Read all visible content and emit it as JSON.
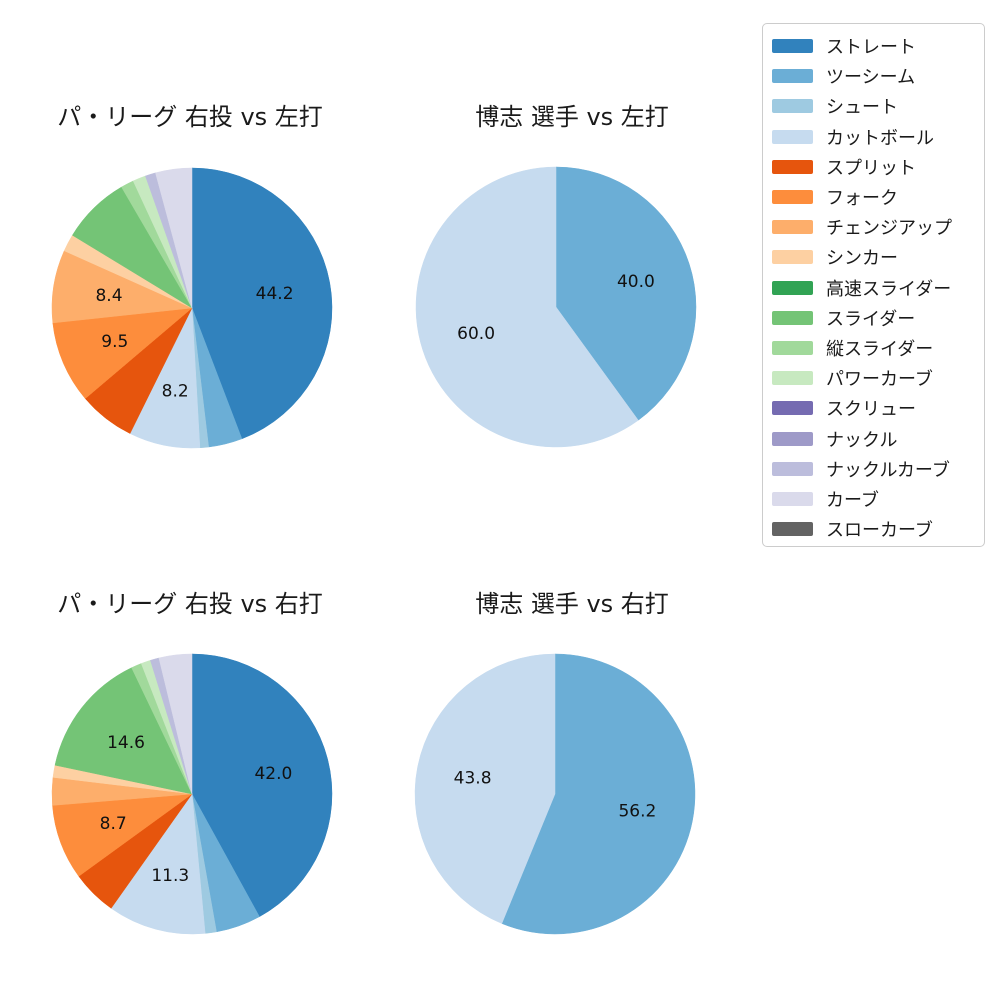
{
  "figure": {
    "background_color": "#ffffff",
    "text_color": "#1a1a1a"
  },
  "palette": {
    "ストレート": "#3182bd",
    "ツーシーム": "#6baed6",
    "シュート": "#9ecae1",
    "カットボール": "#c6dbef",
    "スプリット": "#e6550d",
    "フォーク": "#fd8d3c",
    "チェンジアップ": "#fdae6b",
    "シンカー": "#fdd0a2",
    "高速スライダー": "#31a354",
    "スライダー": "#74c476",
    "縦スライダー": "#a1d99b",
    "パワーカーブ": "#c7e9c0",
    "スクリュー": "#756bb1",
    "ナックル": "#9e9ac8",
    "ナックルカーブ": "#bcbddc",
    "カーブ": "#dadaeb",
    "スローカーブ": "#636363"
  },
  "legend": {
    "position": "upper right",
    "items": [
      "ストレート",
      "ツーシーム",
      "シュート",
      "カットボール",
      "スプリット",
      "フォーク",
      "チェンジアップ",
      "シンカー",
      "高速スライダー",
      "スライダー",
      "縦スライダー",
      "パワーカーブ",
      "スクリュー",
      "ナックル",
      "ナックルカーブ",
      "カーブ",
      "スローカーブ"
    ]
  },
  "chart_data": [
    {
      "type": "pie",
      "title": "パ・リーグ 右投 vs 左打",
      "unit": "percent",
      "start_angle": "top",
      "direction": "clockwise",
      "pct_label_distance": 0.6,
      "slices": [
        {
          "label": "ストレート",
          "value": 44.2,
          "display": "44.2"
        },
        {
          "label": "ツーシーム",
          "value": 3.9,
          "display": ""
        },
        {
          "label": "シュート",
          "value": 1.0,
          "display": ""
        },
        {
          "label": "カットボール",
          "value": 8.2,
          "display": "8.2"
        },
        {
          "label": "スプリット",
          "value": 6.5,
          "display": ""
        },
        {
          "label": "フォーク",
          "value": 9.5,
          "display": "9.5"
        },
        {
          "label": "チェンジアップ",
          "value": 8.4,
          "display": "8.4"
        },
        {
          "label": "シンカー",
          "value": 2.0,
          "display": ""
        },
        {
          "label": "スライダー",
          "value": 7.9,
          "display": ""
        },
        {
          "label": "縦スライダー",
          "value": 1.5,
          "display": ""
        },
        {
          "label": "パワーカーブ",
          "value": 1.5,
          "display": ""
        },
        {
          "label": "ナックルカーブ",
          "value": 1.2,
          "display": ""
        },
        {
          "label": "カーブ",
          "value": 4.2,
          "display": ""
        }
      ]
    },
    {
      "type": "pie",
      "title": "博志 選手 vs 左打",
      "unit": "percent",
      "start_angle": "top",
      "direction": "clockwise",
      "pct_label_distance": 0.6,
      "slices": [
        {
          "label": "ツーシーム",
          "value": 40.0,
          "display": "40.0"
        },
        {
          "label": "カットボール",
          "value": 60.0,
          "display": "60.0"
        }
      ]
    },
    {
      "type": "pie",
      "title": "パ・リーグ 右投 vs 右打",
      "unit": "percent",
      "start_angle": "top",
      "direction": "clockwise",
      "pct_label_distance": 0.6,
      "slices": [
        {
          "label": "ストレート",
          "value": 42.0,
          "display": "42.0"
        },
        {
          "label": "ツーシーム",
          "value": 5.2,
          "display": ""
        },
        {
          "label": "シュート",
          "value": 1.3,
          "display": ""
        },
        {
          "label": "カットボール",
          "value": 11.3,
          "display": "11.3"
        },
        {
          "label": "スプリット",
          "value": 5.2,
          "display": ""
        },
        {
          "label": "フォーク",
          "value": 8.7,
          "display": "8.7"
        },
        {
          "label": "チェンジアップ",
          "value": 3.2,
          "display": ""
        },
        {
          "label": "シンカー",
          "value": 1.4,
          "display": ""
        },
        {
          "label": "スライダー",
          "value": 14.6,
          "display": "14.6"
        },
        {
          "label": "縦スライダー",
          "value": 1.2,
          "display": ""
        },
        {
          "label": "パワーカーブ",
          "value": 1.1,
          "display": ""
        },
        {
          "label": "ナックルカーブ",
          "value": 1.0,
          "display": ""
        },
        {
          "label": "カーブ",
          "value": 3.8,
          "display": ""
        }
      ]
    },
    {
      "type": "pie",
      "title": "博志 選手 vs 右打",
      "unit": "percent",
      "start_angle": "top",
      "direction": "clockwise",
      "pct_label_distance": 0.6,
      "slices": [
        {
          "label": "ツーシーム",
          "value": 56.2,
          "display": "56.2"
        },
        {
          "label": "カットボール",
          "value": 43.8,
          "display": "43.8"
        }
      ]
    }
  ]
}
